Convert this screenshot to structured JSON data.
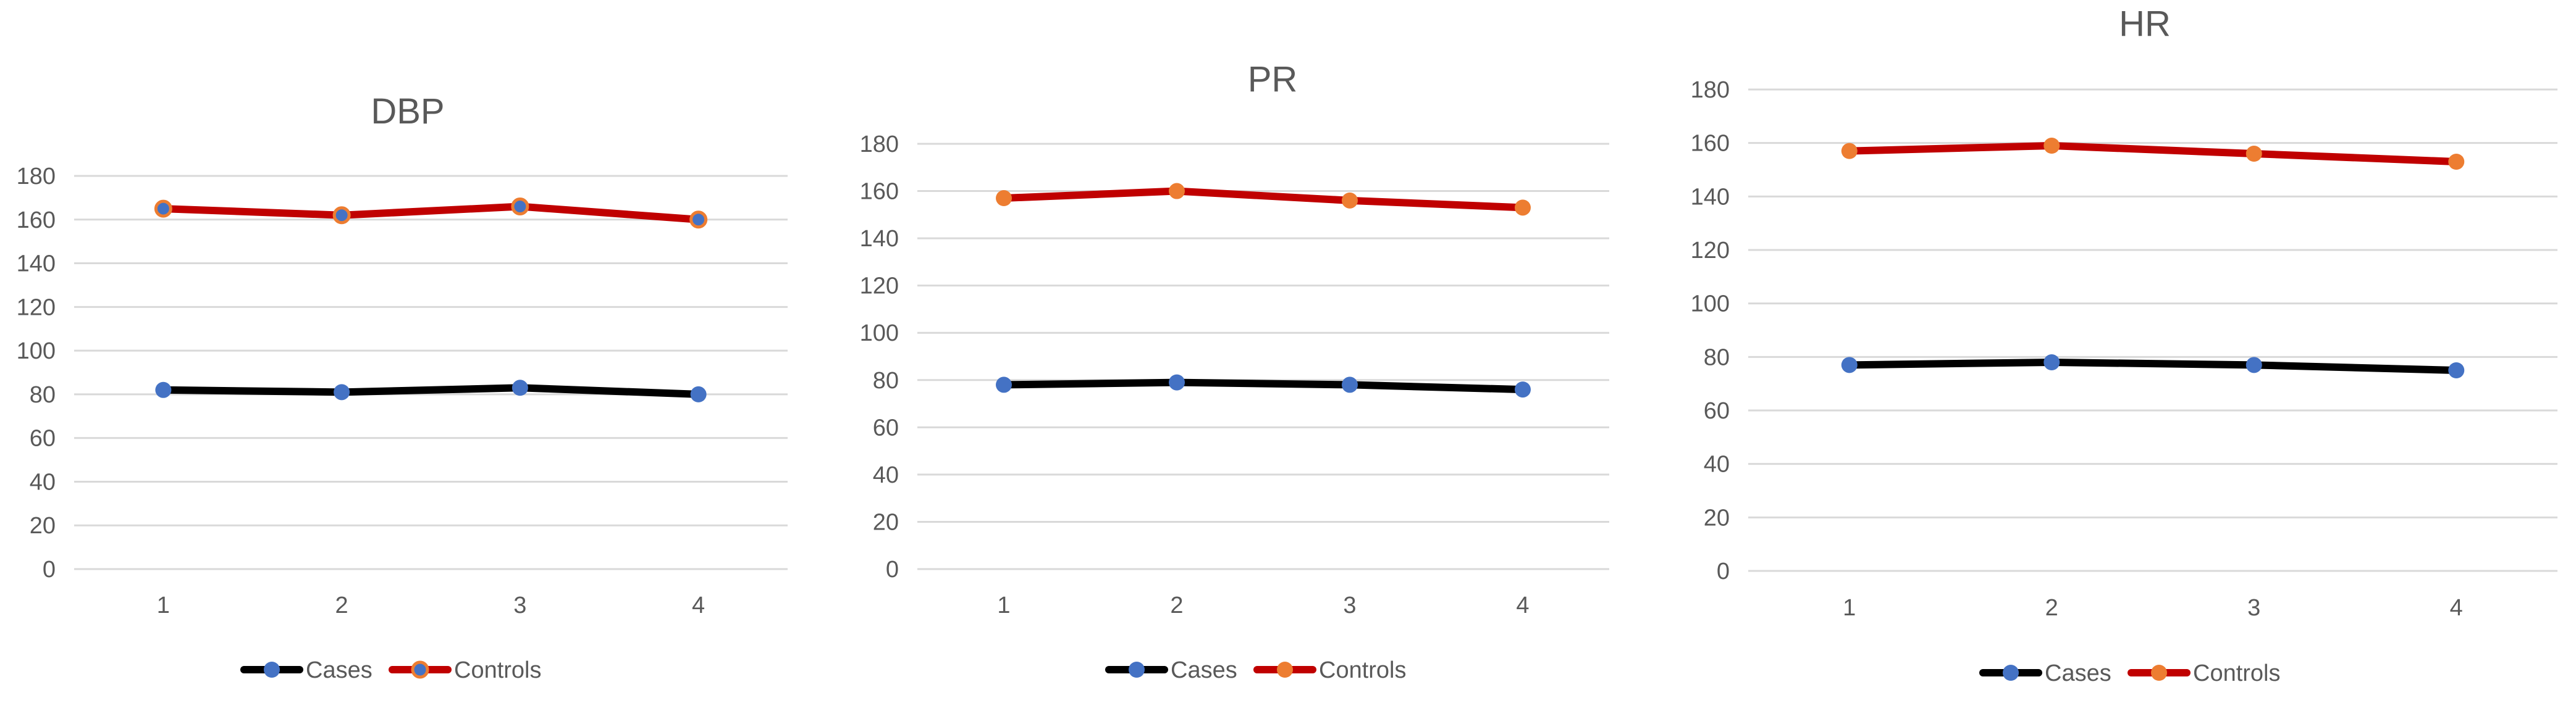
{
  "chart_data": [
    {
      "type": "line",
      "title": "DBP",
      "x": [
        1,
        2,
        3,
        4
      ],
      "ylim": [
        0,
        180
      ],
      "yticks": [
        0,
        20,
        40,
        60,
        80,
        100,
        120,
        140,
        160,
        180
      ],
      "grid": true,
      "legend": "bottom",
      "series": [
        {
          "name": "Cases",
          "values": [
            82,
            81,
            83,
            80
          ],
          "line_color": "#000000",
          "marker_color": "#4472c4"
        },
        {
          "name": "Controls",
          "values": [
            165,
            162,
            166,
            160
          ],
          "line_color": "#c00000",
          "marker_color": "#4472c4",
          "marker_edge": "#ed7d31"
        }
      ]
    },
    {
      "type": "line",
      "title": "PR",
      "x": [
        1,
        2,
        3,
        4
      ],
      "ylim": [
        0,
        180
      ],
      "yticks": [
        0,
        20,
        40,
        60,
        80,
        100,
        120,
        140,
        160,
        180
      ],
      "grid": true,
      "legend": "bottom",
      "series": [
        {
          "name": "Cases",
          "values": [
            78,
            79,
            78,
            76
          ],
          "line_color": "#000000",
          "marker_color": "#4472c4"
        },
        {
          "name": "Controls",
          "values": [
            157,
            160,
            156,
            153
          ],
          "line_color": "#c00000",
          "marker_color": "#ed7d31"
        }
      ]
    },
    {
      "type": "line",
      "title": "HR",
      "x": [
        1,
        2,
        3,
        4
      ],
      "ylim": [
        0,
        180
      ],
      "yticks": [
        0,
        20,
        40,
        60,
        80,
        100,
        120,
        140,
        160,
        180
      ],
      "grid": true,
      "legend": "bottom",
      "series": [
        {
          "name": "Cases",
          "values": [
            77,
            78,
            77,
            75
          ],
          "line_color": "#000000",
          "marker_color": "#4472c4"
        },
        {
          "name": "Controls",
          "values": [
            157,
            159,
            156,
            153
          ],
          "line_color": "#c00000",
          "marker_color": "#ed7d31"
        }
      ]
    }
  ]
}
